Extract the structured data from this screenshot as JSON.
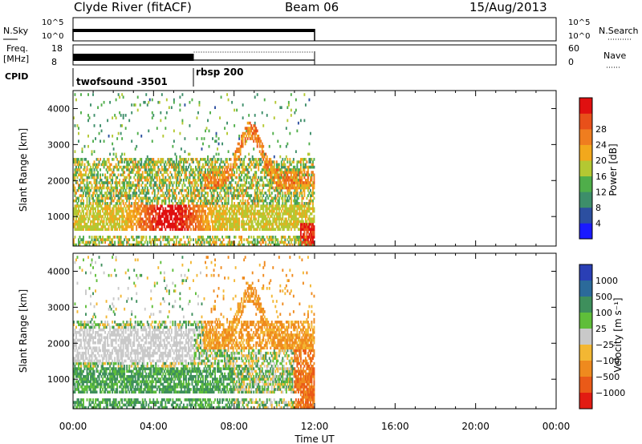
{
  "header": {
    "station": "Clyde River (fitACF)",
    "beam": "Beam 06",
    "date": "15/Aug/2013"
  },
  "panels": {
    "nsky": {
      "label": "N.Sky",
      "tick_hi": "10^5",
      "tick_lo": "10^0",
      "right_label": "N.Search"
    },
    "freq": {
      "label_1": "Freq.",
      "label_2": "[MHz]",
      "tick_hi": "18",
      "tick_lo": "8",
      "right_hi": "60",
      "right_lo": "0",
      "right_label": "Nave"
    },
    "cpid": {
      "label": "CPID",
      "programs": [
        "twofsound -3501",
        "rbsp 200"
      ]
    }
  },
  "chart_data": [
    {
      "type": "heatmap",
      "name": "power",
      "ylabel": "Slant Range [km]",
      "xlabel": "",
      "y_ticks": [
        "1000",
        "2000",
        "3000",
        "4000"
      ],
      "y_range": [
        180,
        4500
      ],
      "x_range_hours": [
        0,
        24
      ],
      "colorbar": {
        "label": "Power [dB]",
        "ticks": [
          "4",
          "8",
          "12",
          "16",
          "20",
          "24",
          "28"
        ],
        "colors": [
          "#1a1aff",
          "#2c4fa0",
          "#3d8e6a",
          "#4fae4a",
          "#b4c832",
          "#f2a81c",
          "#ef7d1f",
          "#e8501a",
          "#e01010"
        ]
      },
      "data_extent_hours": [
        0,
        12
      ]
    },
    {
      "type": "heatmap",
      "name": "velocity",
      "ylabel": "Slant Range [km]",
      "xlabel": "Time UT",
      "y_ticks": [
        "1000",
        "2000",
        "3000",
        "4000"
      ],
      "y_range": [
        180,
        4500
      ],
      "x_range_hours": [
        0,
        24
      ],
      "x_ticks": [
        "00:00",
        "04:00",
        "08:00",
        "12:00",
        "16:00",
        "20:00",
        "00:00"
      ],
      "colorbar": {
        "label": "Velocity [m s⁻¹]",
        "ticks": [
          "1000",
          "500",
          "100",
          "25",
          "−25",
          "−100",
          "−500",
          "−1000"
        ],
        "colors": [
          "#2a3fb5",
          "#2b6a9a",
          "#3e8f5c",
          "#5fbe3a",
          "#c9c9c9",
          "#f3b733",
          "#ef8a1e",
          "#ea5a18",
          "#e21b12"
        ]
      },
      "data_extent_hours": [
        0,
        12
      ]
    }
  ]
}
